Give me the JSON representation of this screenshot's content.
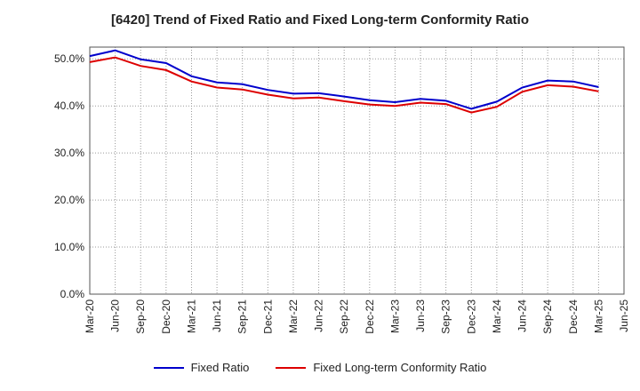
{
  "chart_data": {
    "type": "line",
    "title": "[6420]  Trend of Fixed Ratio and Fixed Long-term Conformity Ratio",
    "xlabel": "",
    "ylabel": "",
    "x": [
      "Mar-20",
      "Jun-20",
      "Sep-20",
      "Dec-20",
      "Mar-21",
      "Jun-21",
      "Sep-21",
      "Dec-21",
      "Mar-22",
      "Jun-22",
      "Sep-22",
      "Dec-22",
      "Mar-23",
      "Jun-23",
      "Sep-23",
      "Dec-23",
      "Mar-24",
      "Jun-24",
      "Sep-24",
      "Dec-24",
      "Mar-25",
      "Jun-25"
    ],
    "ylim": [
      0,
      52.5
    ],
    "yticks": [
      0,
      10,
      20,
      30,
      40,
      50
    ],
    "ytick_labels": [
      "0.0%",
      "10.0%",
      "20.0%",
      "30.0%",
      "40.0%",
      "50.0%"
    ],
    "grid": true,
    "legend_position": "bottom",
    "series": [
      {
        "name": "Fixed Ratio",
        "color": "#0000cc",
        "values": [
          50.6,
          51.8,
          49.9,
          49.1,
          46.3,
          45.0,
          44.6,
          43.4,
          42.6,
          42.7,
          42.0,
          41.2,
          40.8,
          41.5,
          41.1,
          39.4,
          40.9,
          43.9,
          45.4,
          45.2,
          44.0,
          null
        ]
      },
      {
        "name": "Fixed Long-term Conformity Ratio",
        "color": "#dd0000",
        "values": [
          49.3,
          50.3,
          48.5,
          47.6,
          45.2,
          43.9,
          43.5,
          42.4,
          41.6,
          41.8,
          41.0,
          40.3,
          40.0,
          40.7,
          40.4,
          38.6,
          39.8,
          43.0,
          44.4,
          44.1,
          43.1,
          null
        ]
      }
    ]
  }
}
